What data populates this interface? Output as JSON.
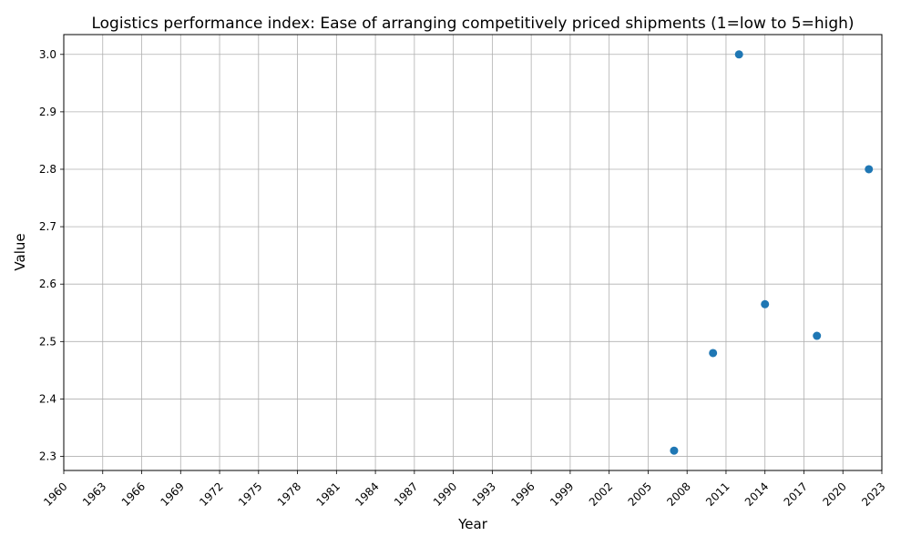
{
  "chart_data": {
    "type": "scatter",
    "title": "Logistics performance index: Ease of arranging competitively priced shipments (1=low to 5=high)",
    "xlabel": "Year",
    "ylabel": "Value",
    "grid": true,
    "xlim": [
      1960,
      2023
    ],
    "ylim": [
      2.2755,
      3.0345
    ],
    "x_ticks": [
      1960,
      1963,
      1966,
      1969,
      1972,
      1975,
      1978,
      1981,
      1984,
      1987,
      1990,
      1993,
      1996,
      1999,
      2002,
      2005,
      2008,
      2011,
      2014,
      2017,
      2020,
      2023
    ],
    "y_ticks": [
      2.3,
      2.4,
      2.5,
      2.6,
      2.7,
      2.8,
      2.9,
      3.0
    ],
    "y_tick_labels": [
      "2.3",
      "2.4",
      "2.5",
      "2.6",
      "2.7",
      "2.8",
      "2.9",
      "3.0"
    ],
    "series": [
      {
        "color": "#1f77b4",
        "x": [
          2007,
          2010,
          2012,
          2014,
          2018,
          2022
        ],
        "y": [
          2.31,
          2.48,
          3.0,
          2.565,
          2.51,
          2.8
        ]
      }
    ]
  }
}
